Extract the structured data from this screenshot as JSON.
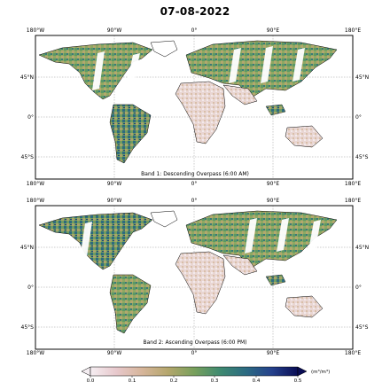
{
  "title": "07-08-2022",
  "lon_labels": [
    "180°W",
    "90°W",
    "0°",
    "90°E",
    "180°E"
  ],
  "lat_labels": [
    "45°N",
    "0°",
    "45°S"
  ],
  "panels": [
    {
      "label": "Band 1: Descending Overpass (6:00 AM)"
    },
    {
      "label": "Band 2: Ascending Overpass (6:00 PM)"
    }
  ],
  "colorbar": {
    "ticks": [
      "0.0",
      "0.1",
      "0.2",
      "0.3",
      "0.4",
      "0.5"
    ],
    "unit": "(m³/m³)",
    "colors": [
      "#f5eef2",
      "#e7c8cc",
      "#d6b59a",
      "#b4a66c",
      "#78a05c",
      "#3f8a70",
      "#2c6b82",
      "#25418c",
      "#0a0d55"
    ]
  }
}
